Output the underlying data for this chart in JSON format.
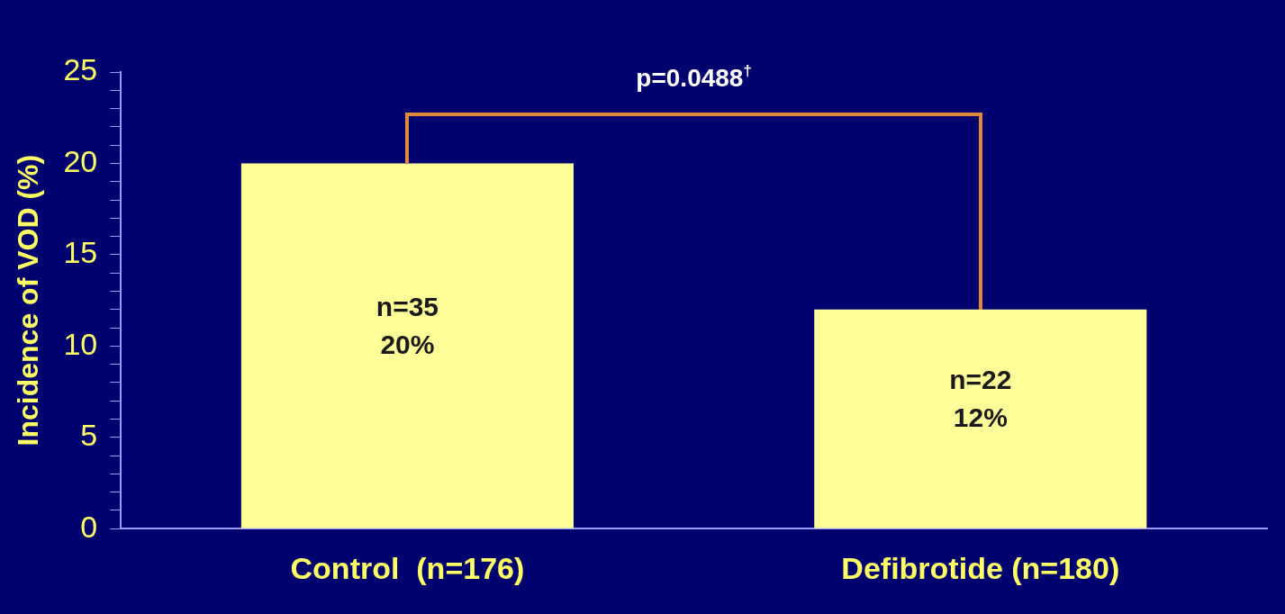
{
  "chart_data": {
    "type": "bar",
    "ylabel": "Incidence of VOD (%)",
    "categories": [
      "Control  (n=176)",
      "Defibrotide (n=180)"
    ],
    "values": [
      20,
      12
    ],
    "color": "#ffff99",
    "value_labels": [
      "n=35\n20%",
      "n=22\n12%"
    ],
    "ylim": [
      0,
      25
    ],
    "yticks": [
      0,
      {
        "value": 1,
        "label": null
      },
      {
        "value": 2,
        "label": null
      },
      {
        "value": 3,
        "label": null
      },
      {
        "value": 4,
        "label": null
      },
      5,
      {
        "value": 6,
        "label": null
      },
      {
        "value": 7,
        "label": null
      },
      {
        "value": 8,
        "label": null
      },
      {
        "value": 9,
        "label": null
      },
      10,
      {
        "value": 11,
        "label": null
      },
      {
        "value": 12,
        "label": null
      },
      {
        "value": 13,
        "label": null
      },
      {
        "value": 14,
        "label": null
      },
      15,
      {
        "value": 16,
        "label": null
      },
      {
        "value": 17,
        "label": null
      },
      {
        "value": 18,
        "label": null
      },
      {
        "value": 19,
        "label": null
      },
      20,
      {
        "value": 21,
        "label": null
      },
      {
        "value": 22,
        "label": null
      },
      {
        "value": 23,
        "label": null
      },
      {
        "value": 24,
        "label": null
      },
      25
    ],
    "annotations": [
      "p=0.0488$^{†}$"
    ],
    "grid": false,
    "legend": false
  }
}
